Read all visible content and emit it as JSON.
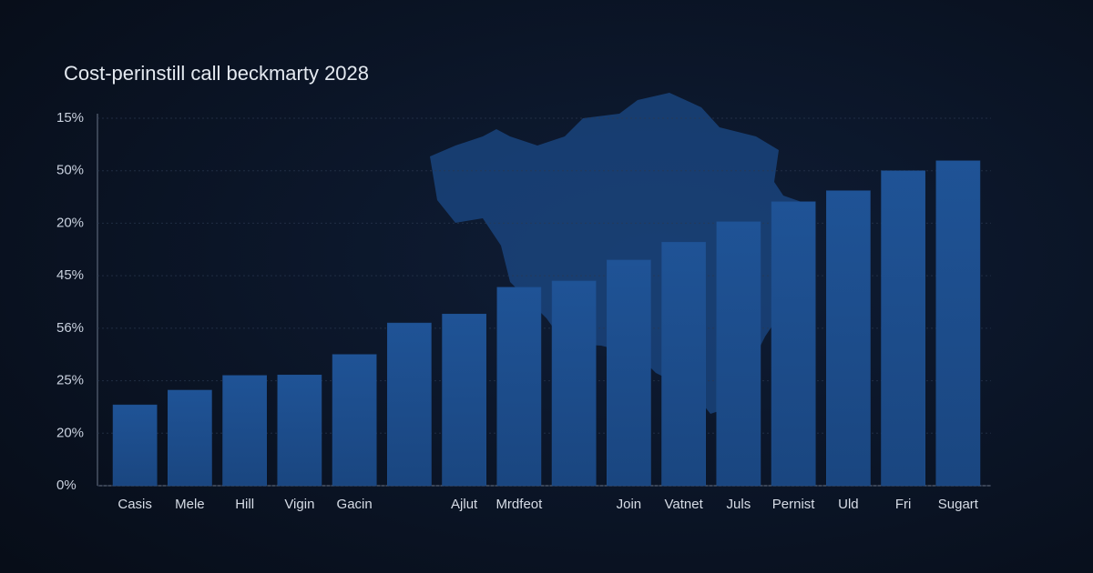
{
  "chart_data": {
    "type": "bar",
    "title": "Cost-perinstill call beckmarty 2028",
    "categories": [
      "Casis",
      "Mele",
      "Hill",
      "Vigin",
      "Gacin",
      null,
      "Ajlut",
      "Mrdfeot",
      null,
      "Join",
      "Vatnet",
      "Juls",
      "Pernist",
      "Uld",
      "Fri",
      "Sugart"
    ],
    "values": [
      1.54,
      1.82,
      2.1,
      2.11,
      2.5,
      3.1,
      3.27,
      3.78,
      3.9,
      4.3,
      4.64,
      5.03,
      5.41,
      5.62,
      6.0,
      6.19
    ],
    "color": "#1f4f8e",
    "ylim": [
      0,
      7
    ],
    "yticks": [
      {
        "value": 0,
        "label": "0%"
      },
      {
        "value": 1,
        "label": "20%"
      },
      {
        "value": 2,
        "label": "25%"
      },
      {
        "value": 3,
        "label": "56%"
      },
      {
        "value": 4,
        "label": "45%"
      },
      {
        "value": 5,
        "label": "20%"
      },
      {
        "value": 6,
        "label": "50%"
      },
      {
        "value": 7,
        "label": "15%"
      }
    ],
    "grid": true
  }
}
